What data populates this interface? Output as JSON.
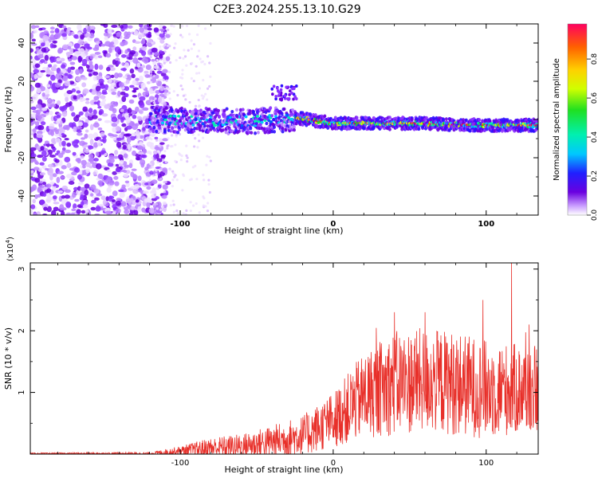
{
  "title": "C2E3.2024.255.13.10.G29",
  "chart_data": [
    {
      "type": "heatmap",
      "name": "spectrogram",
      "xlabel": "Height of straight line (km)",
      "ylabel": "Frequency (Hz)",
      "xlim": [
        -198,
        134
      ],
      "ylim": [
        -50,
        50
      ],
      "xticks": [
        -100,
        0,
        100
      ],
      "yticks": [
        -40,
        -20,
        0,
        20,
        40
      ],
      "colorbar": {
        "label": "Normalized spectral amplitude",
        "range": [
          0,
          0.98
        ],
        "ticks": [
          0.0,
          0.2,
          0.4,
          0.6,
          0.8
        ],
        "colormap": "rainbow"
      },
      "features": {
        "noise_region_x": [
          -198,
          -120
        ],
        "signal_onset_x": -120,
        "track": [
          {
            "x": -120,
            "y": 0
          },
          {
            "x": -60,
            "y": -1
          },
          {
            "x": -30,
            "y": 0
          },
          {
            "x": -25,
            "y": 1
          },
          {
            "x": 0,
            "y": -2
          },
          {
            "x": 50,
            "y": -2
          },
          {
            "x": 100,
            "y": -3
          },
          {
            "x": 134,
            "y": -3
          }
        ],
        "transition_x": -25
      }
    },
    {
      "type": "line",
      "name": "snr",
      "xlabel": "Height of straight line (km)",
      "ylabel": "SNR (10 * v/v)",
      "scale_label": "(x10",
      "scale_exp": "4",
      "scale_close": ")",
      "xlim": [
        -198,
        134
      ],
      "ylim": [
        0,
        3.1
      ],
      "xticks": [
        -100,
        0,
        100
      ],
      "yticks": [
        1,
        2,
        3
      ],
      "color": "#e8302a",
      "envelope": [
        {
          "x": -198,
          "mean": 0.01,
          "amp": 0.01
        },
        {
          "x": -120,
          "mean": 0.01,
          "amp": 0.02
        },
        {
          "x": -100,
          "mean": 0.05,
          "amp": 0.08
        },
        {
          "x": -80,
          "mean": 0.1,
          "amp": 0.17
        },
        {
          "x": -60,
          "mean": 0.13,
          "amp": 0.2
        },
        {
          "x": -40,
          "mean": 0.2,
          "amp": 0.27
        },
        {
          "x": -20,
          "mean": 0.3,
          "amp": 0.33
        },
        {
          "x": 0,
          "mean": 0.55,
          "amp": 0.45
        },
        {
          "x": 20,
          "mean": 0.95,
          "amp": 0.7
        },
        {
          "x": 40,
          "mean": 1.15,
          "amp": 0.85
        },
        {
          "x": 60,
          "mean": 1.2,
          "amp": 0.85
        },
        {
          "x": 80,
          "mean": 1.15,
          "amp": 0.85
        },
        {
          "x": 100,
          "mean": 1.05,
          "amp": 0.8
        },
        {
          "x": 134,
          "mean": 1.05,
          "amp": 0.7
        }
      ],
      "spikes": [
        {
          "x": 116.5,
          "y": 3.1
        },
        {
          "x": 98,
          "y": 2.5
        },
        {
          "x": 60,
          "y": 2.3
        },
        {
          "x": 40,
          "y": 2.3
        },
        {
          "x": 128,
          "y": 2.1
        }
      ]
    }
  ]
}
